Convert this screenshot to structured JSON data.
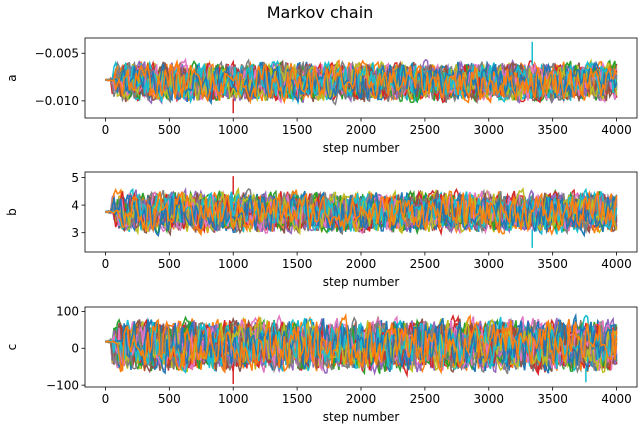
{
  "figure": {
    "suptitle": "Markov chain"
  },
  "chart_data": [
    {
      "type": "line",
      "ylabel": "a",
      "xlabel": "step number",
      "xlim": [
        -160,
        4160
      ],
      "ylim": [
        -0.0118,
        -0.0034
      ],
      "xticks": [
        0,
        500,
        1000,
        1500,
        2000,
        2500,
        3000,
        3500,
        4000
      ],
      "xtick_labels": [
        "0",
        "500",
        "1000",
        "1500",
        "2000",
        "2500",
        "3000",
        "3500",
        "4000"
      ],
      "yticks": [
        -0.01,
        -0.005
      ],
      "ytick_labels": [
        "−0.010",
        "−0.005"
      ],
      "walkers": 32,
      "steps": 4000,
      "burn_in_steps": 100,
      "start_value": -0.0078,
      "stationary_range": [
        -0.0105,
        -0.0055
      ],
      "spikes": [
        {
          "x": 1000,
          "y": -0.0113
        },
        {
          "x": 3340,
          "y": -0.0038
        }
      ]
    },
    {
      "type": "line",
      "ylabel": "b",
      "xlabel": "step number",
      "xlim": [
        -160,
        4160
      ],
      "ylim": [
        2.3,
        5.2
      ],
      "xticks": [
        0,
        500,
        1000,
        1500,
        2000,
        2500,
        3000,
        3500,
        4000
      ],
      "xtick_labels": [
        "0",
        "500",
        "1000",
        "1500",
        "2000",
        "2500",
        "3000",
        "3500",
        "4000"
      ],
      "yticks": [
        3,
        4,
        5
      ],
      "ytick_labels": [
        "3",
        "4",
        "5"
      ],
      "walkers": 32,
      "steps": 4000,
      "burn_in_steps": 100,
      "start_value": 3.75,
      "stationary_range": [
        2.85,
        4.65
      ],
      "spikes": [
        {
          "x": 1000,
          "y": 5.05
        },
        {
          "x": 3340,
          "y": 2.45
        }
      ]
    },
    {
      "type": "line",
      "ylabel": "c",
      "xlabel": "step number",
      "xlim": [
        -160,
        4160
      ],
      "ylim": [
        -105,
        112
      ],
      "xticks": [
        0,
        500,
        1000,
        1500,
        2000,
        2500,
        3000,
        3500,
        4000
      ],
      "xtick_labels": [
        "0",
        "500",
        "1000",
        "1500",
        "2000",
        "2500",
        "3000",
        "3500",
        "4000"
      ],
      "yticks": [
        -100,
        0,
        100
      ],
      "ytick_labels": [
        "−100",
        "0",
        "100"
      ],
      "walkers": 32,
      "steps": 4000,
      "burn_in_steps": 100,
      "start_value": 18,
      "stationary_range": [
        -78,
        95
      ],
      "spikes": [
        {
          "x": 1000,
          "y": -97
        },
        {
          "x": 3760,
          "y": -92
        }
      ]
    }
  ],
  "colors": [
    "#1f77b4",
    "#ff7f0e",
    "#2ca02c",
    "#d62728",
    "#9467bd",
    "#8c564b",
    "#e377c2",
    "#7f7f7f",
    "#bcbd22",
    "#17becf"
  ]
}
